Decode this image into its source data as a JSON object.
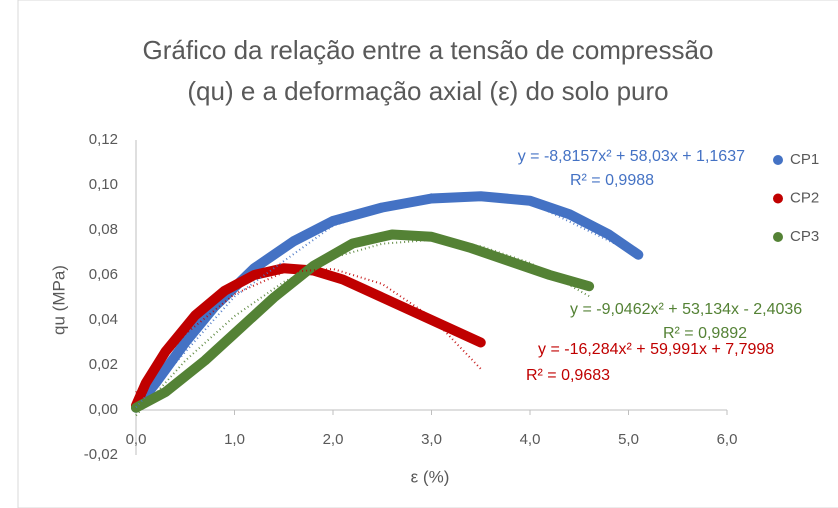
{
  "chart_data": {
    "type": "scatter",
    "title": [
      "Gráfico da relação entre a tensão de compressão",
      "(qu) e a deformação axial  (ε) do solo puro"
    ],
    "x_label": "ε (%)",
    "y_label": "qu (MPa)",
    "xlim": [
      0,
      6
    ],
    "xticks": [
      {
        "value": 0,
        "label": "0,0"
      },
      {
        "value": 1,
        "label": "1,0"
      },
      {
        "value": 2,
        "label": "2,0"
      },
      {
        "value": 3,
        "label": "3,0"
      },
      {
        "value": 4,
        "label": "4,0"
      },
      {
        "value": 5,
        "label": "5,0"
      },
      {
        "value": 6,
        "label": "6,0"
      }
    ],
    "ylim": [
      -0.02,
      0.12
    ],
    "yticks": [
      {
        "value": -0.02,
        "label": "-0,02"
      },
      {
        "value": 0,
        "label": "0,00"
      },
      {
        "value": 0.02,
        "label": "0,02"
      },
      {
        "value": 0.04,
        "label": "0,04"
      },
      {
        "value": 0.06,
        "label": "0,06"
      },
      {
        "value": 0.08,
        "label": "0,08"
      },
      {
        "value": 0.1,
        "label": "0,10"
      },
      {
        "value": 0.12,
        "label": "0,12"
      }
    ],
    "grid": false,
    "legend": "right",
    "series": [
      {
        "name": "CP1",
        "color": "#4472c4",
        "x": [
          0,
          0.2,
          0.5,
          0.8,
          1.2,
          1.6,
          2.0,
          2.5,
          3.0,
          3.5,
          4.0,
          4.4,
          4.8,
          5.1
        ],
        "values": [
          0.001,
          0.012,
          0.03,
          0.046,
          0.063,
          0.075,
          0.084,
          0.09,
          0.094,
          0.095,
          0.093,
          0.087,
          0.078,
          0.069
        ],
        "trendline": {
          "x": [
            0,
            1,
            2,
            3,
            4,
            5,
            5.1
          ],
          "values": [
            0.0012,
            0.0504,
            0.0819,
            0.0959,
            0.0922,
            0.071,
            0.0678
          ]
        },
        "equation": "y = -8,8157x² + 58,03x + 1,1637",
        "r2": "R² = 0,9988"
      },
      {
        "name": "CP2",
        "color": "#c00000",
        "x": [
          0,
          0.1,
          0.3,
          0.6,
          0.9,
          1.2,
          1.5,
          1.8,
          2.1,
          2.5,
          2.9,
          3.2,
          3.5
        ],
        "values": [
          0.002,
          0.012,
          0.026,
          0.042,
          0.053,
          0.06,
          0.063,
          0.062,
          0.058,
          0.05,
          0.042,
          0.036,
          0.03
        ],
        "trendline": {
          "x": [
            0,
            0.5,
            1,
            1.5,
            2,
            2.5,
            3,
            3.5
          ],
          "values": [
            0.0078,
            0.0337,
            0.0515,
            0.0612,
            0.0627,
            0.056,
            0.0412,
            0.0183
          ]
        },
        "equation": "y = -16,284x² + 59,991x + 7,7998",
        "r2": "R² = 0,9683"
      },
      {
        "name": "CP3",
        "color": "#548235",
        "x": [
          0,
          0.3,
          0.7,
          1.0,
          1.4,
          1.8,
          2.2,
          2.6,
          3.0,
          3.4,
          3.8,
          4.2,
          4.6
        ],
        "values": [
          0.001,
          0.008,
          0.022,
          0.034,
          0.05,
          0.064,
          0.074,
          0.078,
          0.077,
          0.072,
          0.066,
          0.06,
          0.055
        ],
        "trendline": {
          "x": [
            0,
            0.5,
            1,
            1.5,
            2,
            2.5,
            3,
            3.5,
            4,
            4.6
          ],
          "values": [
            -0.0024,
            0.0219,
            0.0417,
            0.0569,
            0.0677,
            0.0739,
            0.0756,
            0.0728,
            0.0654,
            0.0506
          ]
        },
        "equation": "y = -9,0462x² + 53,134x - 2,4036",
        "r2": "R² = 0,9892"
      }
    ]
  }
}
